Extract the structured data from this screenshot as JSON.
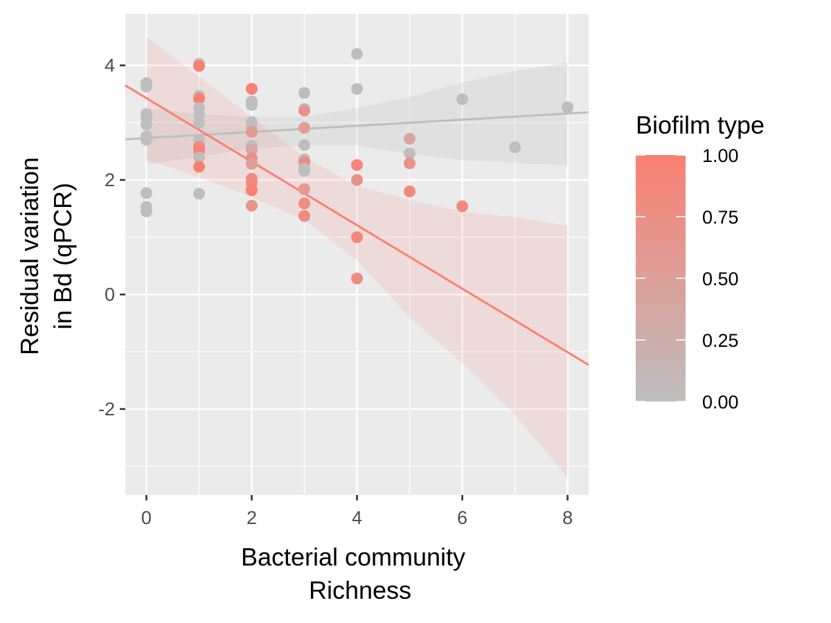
{
  "chart_data": {
    "type": "scatter",
    "xlabel_lines": [
      "Bacterial community",
      "Richness"
    ],
    "ylabel_lines": [
      "Residual variation",
      "in Bd (qPCR)"
    ],
    "xlim": [
      -0.4,
      8.4
    ],
    "ylim": [
      -3.5,
      4.9
    ],
    "x_ticks": [
      0,
      2,
      4,
      6,
      8
    ],
    "x_tick_labels": [
      "0",
      "2",
      "4",
      "6",
      "8"
    ],
    "y_ticks": [
      -2,
      0,
      2,
      4
    ],
    "y_tick_labels": [
      "-2",
      "0",
      "2",
      "4"
    ],
    "grid": true,
    "legend": {
      "title": "Biofilm type",
      "position": "right",
      "type": "colorbar",
      "breaks": [
        1.0,
        0.75,
        0.5,
        0.25,
        0.0
      ],
      "labels": [
        "1.00",
        "0.75",
        "0.50",
        "0.25",
        "0.00"
      ],
      "low_color": "#BEBEBE",
      "high_color": "#FA8072"
    },
    "points": [
      {
        "x": 0,
        "y": 3.69,
        "c": 0
      },
      {
        "x": 0,
        "y": 3.63,
        "c": 0
      },
      {
        "x": 0,
        "y": 3.15,
        "c": 0
      },
      {
        "x": 0,
        "y": 3.08,
        "c": 0
      },
      {
        "x": 0,
        "y": 2.97,
        "c": 0
      },
      {
        "x": 0,
        "y": 2.76,
        "c": 0
      },
      {
        "x": 0,
        "y": 2.7,
        "c": 0
      },
      {
        "x": 0,
        "y": 1.77,
        "c": 0
      },
      {
        "x": 0,
        "y": 1.53,
        "c": 0
      },
      {
        "x": 0,
        "y": 1.45,
        "c": 0
      },
      {
        "x": 1,
        "y": 4.03,
        "c": 0
      },
      {
        "x": 1,
        "y": 3.99,
        "c": 1
      },
      {
        "x": 1,
        "y": 3.47,
        "c": 0
      },
      {
        "x": 1,
        "y": 3.42,
        "c": 1
      },
      {
        "x": 1,
        "y": 3.26,
        "c": 0
      },
      {
        "x": 1,
        "y": 3.14,
        "c": 0
      },
      {
        "x": 1,
        "y": 3.0,
        "c": 0
      },
      {
        "x": 1,
        "y": 2.7,
        "c": 0
      },
      {
        "x": 1,
        "y": 2.62,
        "c": 0
      },
      {
        "x": 1,
        "y": 2.58,
        "c": 0.8
      },
      {
        "x": 1,
        "y": 2.51,
        "c": 1
      },
      {
        "x": 1,
        "y": 2.39,
        "c": 0
      },
      {
        "x": 1,
        "y": 2.23,
        "c": 1
      },
      {
        "x": 1,
        "y": 1.76,
        "c": 0
      },
      {
        "x": 2,
        "y": 3.59,
        "c": 1
      },
      {
        "x": 2,
        "y": 3.37,
        "c": 0
      },
      {
        "x": 2,
        "y": 3.31,
        "c": 0
      },
      {
        "x": 2,
        "y": 3.01,
        "c": 0
      },
      {
        "x": 2,
        "y": 2.91,
        "c": 0
      },
      {
        "x": 2,
        "y": 2.84,
        "c": 0.6
      },
      {
        "x": 2,
        "y": 2.6,
        "c": 0
      },
      {
        "x": 2,
        "y": 2.53,
        "c": 0.4
      },
      {
        "x": 2,
        "y": 2.38,
        "c": 0.8
      },
      {
        "x": 2,
        "y": 2.28,
        "c": 0.5
      },
      {
        "x": 2,
        "y": 2.02,
        "c": 0.8
      },
      {
        "x": 2,
        "y": 1.95,
        "c": 0.8
      },
      {
        "x": 2,
        "y": 1.83,
        "c": 1
      },
      {
        "x": 2,
        "y": 1.82,
        "c": 1
      },
      {
        "x": 2,
        "y": 1.55,
        "c": 0.7
      },
      {
        "x": 3,
        "y": 3.52,
        "c": 0
      },
      {
        "x": 3,
        "y": 3.24,
        "c": 0
      },
      {
        "x": 3,
        "y": 3.21,
        "c": 0.7
      },
      {
        "x": 3,
        "y": 2.91,
        "c": 0.5
      },
      {
        "x": 3,
        "y": 2.61,
        "c": 0
      },
      {
        "x": 3,
        "y": 2.36,
        "c": 0
      },
      {
        "x": 3,
        "y": 2.31,
        "c": 0.8
      },
      {
        "x": 3,
        "y": 2.2,
        "c": 0
      },
      {
        "x": 3,
        "y": 2.16,
        "c": 0
      },
      {
        "x": 3,
        "y": 1.84,
        "c": 0.6
      },
      {
        "x": 3,
        "y": 1.59,
        "c": 0.8
      },
      {
        "x": 3,
        "y": 1.37,
        "c": 0.8
      },
      {
        "x": 4,
        "y": 4.2,
        "c": 0
      },
      {
        "x": 4,
        "y": 3.59,
        "c": 0
      },
      {
        "x": 4,
        "y": 2.26,
        "c": 0.9
      },
      {
        "x": 4,
        "y": 2.0,
        "c": 0.7
      },
      {
        "x": 4,
        "y": 1.0,
        "c": 0.9
      },
      {
        "x": 4,
        "y": 0.28,
        "c": 0.8
      },
      {
        "x": 5,
        "y": 2.72,
        "c": 0.4
      },
      {
        "x": 5,
        "y": 2.46,
        "c": 0
      },
      {
        "x": 5,
        "y": 2.29,
        "c": 0.7
      },
      {
        "x": 5,
        "y": 1.8,
        "c": 0.85
      },
      {
        "x": 6,
        "y": 3.41,
        "c": 0
      },
      {
        "x": 6,
        "y": 1.54,
        "c": 0.85
      },
      {
        "x": 7,
        "y": 2.57,
        "c": 0
      },
      {
        "x": 8,
        "y": 3.27,
        "c": 0
      }
    ],
    "fits": [
      {
        "group": 0,
        "color": "#BEBEBE",
        "line": [
          [
            -0.4,
            2.71
          ],
          [
            8.4,
            3.18
          ]
        ],
        "band_x": [
          0.0,
          1.0,
          2.0,
          3.0,
          4.0,
          5.0,
          6.0,
          7.0,
          8.0
        ],
        "band_upper": [
          3.25,
          3.15,
          3.1,
          3.1,
          3.25,
          3.45,
          3.7,
          3.9,
          4.05
        ],
        "band_lower": [
          2.27,
          2.4,
          2.55,
          2.6,
          2.6,
          2.45,
          2.35,
          2.3,
          2.25
        ]
      },
      {
        "group": 1,
        "color": "#FA8072",
        "line": [
          [
            -0.4,
            3.65
          ],
          [
            8.4,
            -1.23
          ]
        ],
        "band_x": [
          0.0,
          1.0,
          2.0,
          3.0,
          4.0,
          5.0,
          6.0,
          7.0,
          8.0
        ],
        "band_upper": [
          4.5,
          3.8,
          3.1,
          2.4,
          1.9,
          1.65,
          1.45,
          1.35,
          1.2
        ],
        "band_lower": [
          2.35,
          2.05,
          1.7,
          1.3,
          0.6,
          -0.4,
          -1.2,
          -2.1,
          -3.2
        ]
      }
    ]
  }
}
